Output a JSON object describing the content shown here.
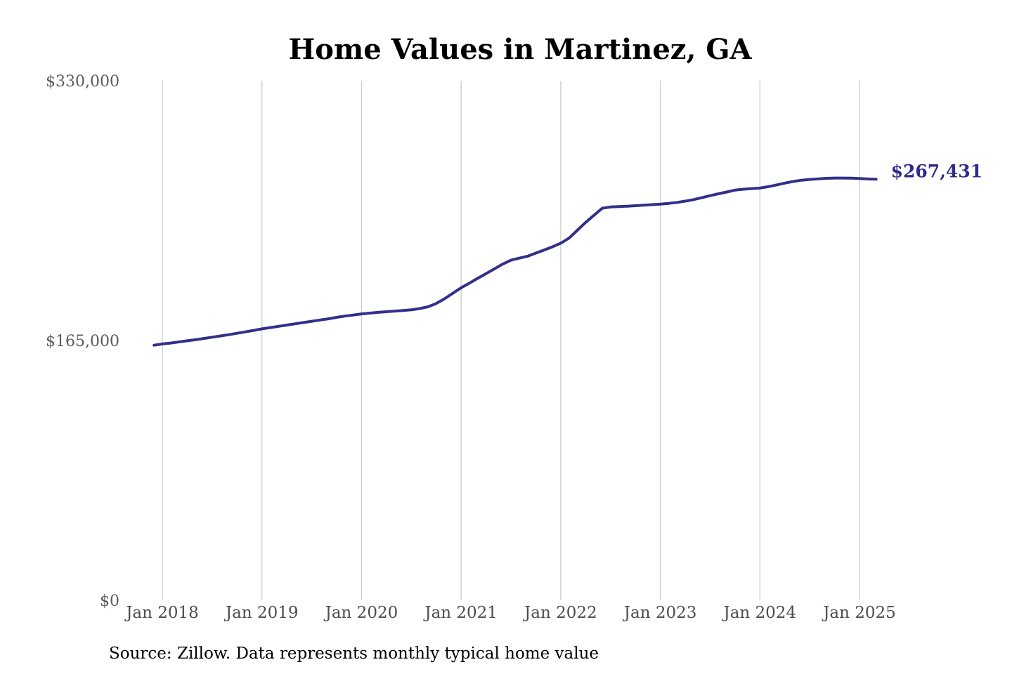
{
  "title": "Home Values in Martinez, GA",
  "source_note": "Source: Zillow. Data represents monthly typical home value",
  "colors": {
    "line": "#32308a",
    "end_label": "#2e2b8e",
    "grid": "#cbcbcb",
    "y_tick_text": "#5a5a5a",
    "x_tick_text": "#4d4d4d",
    "title_text": "#141414",
    "source_text": "#3a3a3a",
    "background": "#ffffff"
  },
  "chart_data": {
    "type": "line",
    "title": "Home Values in Martinez, GA",
    "xlabel": "",
    "ylabel": "",
    "ylim": [
      0,
      330000
    ],
    "grid": "vertical-only",
    "legend": "none",
    "x_tick_labels": [
      "Jan 2018",
      "Jan 2019",
      "Jan 2020",
      "Jan 2021",
      "Jan 2022",
      "Jan 2023",
      "Jan 2024",
      "Jan 2025"
    ],
    "y_ticks": [
      {
        "label": "$0",
        "value": 0
      },
      {
        "label": "$165,000",
        "value": 165000
      },
      {
        "label": "$330,000",
        "value": 330000
      }
    ],
    "end_annotation": {
      "label": "$267,431",
      "value": 267431
    },
    "series": [
      {
        "name": "Monthly typical home value",
        "start_month": "2017-12",
        "end_month": "2025-03",
        "interval": "monthly",
        "first_tick_month_index": 1,
        "months_per_tick": 12,
        "values": [
          162000,
          162800,
          163400,
          164100,
          164800,
          165500,
          166300,
          167100,
          167900,
          168700,
          169600,
          170500,
          171400,
          172400,
          173200,
          174000,
          174800,
          175600,
          176400,
          177200,
          178000,
          178800,
          179700,
          180500,
          181200,
          181900,
          182400,
          182900,
          183300,
          183700,
          184100,
          184500,
          185300,
          186400,
          188500,
          191500,
          195000,
          198500,
          201500,
          204500,
          207500,
          210500,
          213500,
          216000,
          217300,
          218500,
          220500,
          222500,
          224500,
          226800,
          230000,
          235000,
          240000,
          244500,
          249000,
          249800,
          250100,
          250300,
          250600,
          251000,
          251300,
          251600,
          252100,
          252700,
          253500,
          254500,
          255700,
          257000,
          258200,
          259300,
          260500,
          261100,
          261500,
          261800,
          262700,
          263800,
          265000,
          266000,
          266800,
          267300,
          267700,
          268000,
          268200,
          268200,
          268100,
          267900,
          267600,
          267431
        ]
      }
    ]
  }
}
